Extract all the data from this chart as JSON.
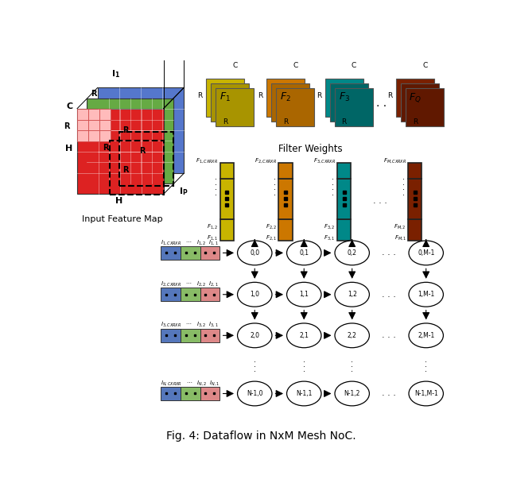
{
  "title": "Fig. 4: Dataflow in NxM Mesh NoC.",
  "filter_colors": [
    "#c8b400",
    "#cc7700",
    "#008888",
    "#7a2000"
  ],
  "filter_shadow_colors": [
    "#a89400",
    "#aa6600",
    "#006666",
    "#601800"
  ],
  "filter_labels_math": [
    "$F_1$",
    "$F_2$",
    "$F_3$",
    "$F_Q$"
  ],
  "col_bar_colors": [
    "#c8b400",
    "#cc7700",
    "#008888",
    "#7a2000"
  ],
  "col_top_labels": [
    "$F_{1,CXRXR}$",
    "$F_{2,CXRXR}$",
    "$F_{3,CXRXR}$",
    "$F_{M,CXRXR}$"
  ],
  "col_bot_labels": [
    [
      "$F_{1,2}$",
      "$F_{1,1}$"
    ],
    [
      "$F_{2,2}$",
      "$F_{2,1}$"
    ],
    [
      "$F_{3,2}$",
      "$F_{3,1}$"
    ],
    [
      "$F_{M,2}$",
      "$F_{M,1}$"
    ]
  ],
  "input_bar_colors": [
    "#5577bb",
    "#88bb66",
    "#dd8888"
  ],
  "node_labels": [
    [
      "0,0",
      "0,1",
      "0,2",
      "0,M-1"
    ],
    [
      "1,0",
      "1,1",
      "1,2",
      "1,M-1"
    ],
    [
      "2,0",
      "2,1",
      "2,2",
      "2,M-1"
    ],
    [
      "N-1,0",
      "N-1,1",
      "N-1,2",
      "N-1,M-1"
    ]
  ],
  "row_input_labels": [
    "$I_{1,CXRXR}$   $\\cdots$   $I_{1,2}$  $I_{1,1}$",
    "$I_{2,CXRXR}$   $\\cdots$   $I_{2,2}$  $I_{2,1}$",
    "$I_{3,CXRXR}$   $\\cdots$   $I_{3,2}$  $I_{3,1}$",
    "$I_{N,CXRXR}$   $\\cdots$   $I_{N,2}$  $I_{N,1}$"
  ],
  "bg_color": "#ffffff",
  "ifm_colors": [
    "#5577cc",
    "#66aa44",
    "#dd2222"
  ],
  "ifm_kernel_color": "#ffaaaa",
  "ifm_kernel_edge": "#cc4444"
}
